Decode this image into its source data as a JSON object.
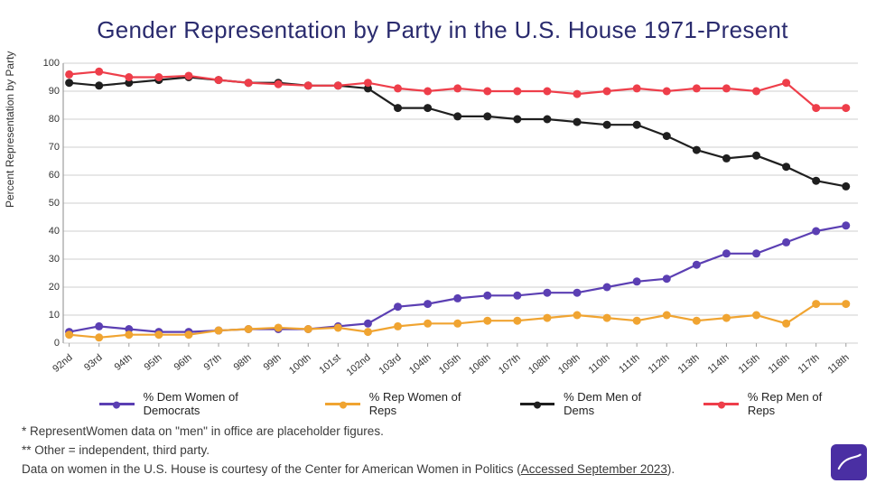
{
  "title": "Gender Representation by Party in the U.S. House 1971-Present",
  "title_color": "#2a2b6e",
  "ylabel": "Percent Representation by Party",
  "ylim": [
    0,
    100
  ],
  "ytick_step": 10,
  "background_color": "#ffffff",
  "grid_color": "#cfcfcf",
  "axis_color": "#9e9e9e",
  "tick_font_size": 11,
  "marker_radius": 4.5,
  "line_width": 2.2,
  "categories": [
    "92nd",
    "93rd",
    "94th",
    "95th",
    "96th",
    "97th",
    "98th",
    "99th",
    "100th",
    "101st",
    "102nd",
    "103rd",
    "104th",
    "105th",
    "106th",
    "107th",
    "108th",
    "109th",
    "110th",
    "111th",
    "112th",
    "113th",
    "114th",
    "115th",
    "116th",
    "117th",
    "118th"
  ],
  "series": [
    {
      "key": "dem_women",
      "label": "% Dem Women of Democrats",
      "color": "#5b3fb3",
      "values": [
        4,
        6,
        5,
        4,
        4,
        4.5,
        5,
        5,
        5,
        6,
        7,
        13,
        14,
        16,
        17,
        17,
        18,
        18,
        20,
        22,
        23,
        28,
        32,
        32,
        36,
        40,
        42
      ]
    },
    {
      "key": "rep_women",
      "label": "% Rep Women of Reps",
      "color": "#f0a431",
      "values": [
        3,
        2,
        3,
        3,
        3,
        4.5,
        5,
        5.5,
        5,
        5.5,
        4,
        6,
        7,
        7,
        8,
        8,
        9,
        10,
        9,
        8,
        10,
        8,
        9,
        10,
        7,
        14,
        14
      ]
    },
    {
      "key": "dem_men",
      "label": "% Dem Men of Dems",
      "color": "#1f1f1f",
      "values": [
        93,
        92,
        93,
        94,
        95,
        94,
        93,
        93,
        92,
        92,
        91,
        84,
        84,
        81,
        81,
        80,
        80,
        79,
        78,
        78,
        74,
        69,
        66,
        67,
        63,
        58,
        56
      ]
    },
    {
      "key": "rep_men",
      "label": "% Rep Men of Reps",
      "color": "#ee3e4a",
      "values": [
        96,
        97,
        95,
        95,
        95.5,
        94,
        93,
        92.5,
        92,
        92,
        93,
        91,
        90,
        91,
        90,
        90,
        90,
        89,
        90,
        91,
        90,
        91,
        91,
        90,
        93,
        84,
        84
      ]
    }
  ],
  "legend_order": [
    "dem_women",
    "rep_women",
    "dem_men",
    "rep_men"
  ],
  "footnotes": {
    "line1": "* RepresentWomen data on \"men\" in office are placeholder figures.",
    "line2": "** Other = independent, third party.",
    "line3_prefix": "Data on women in the U.S. House is courtesy of the Center for American Women in Politics (",
    "line3_link": "Accessed September 2023",
    "line3_suffix": ")."
  },
  "logo_bg": "#4a2fa3",
  "logo_stroke": "#ffffff"
}
